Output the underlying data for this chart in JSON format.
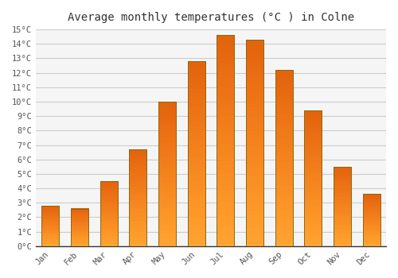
{
  "months": [
    "Jan",
    "Feb",
    "Mar",
    "Apr",
    "May",
    "Jun",
    "Jul",
    "Aug",
    "Sep",
    "Oct",
    "Nov",
    "Dec"
  ],
  "values": [
    2.8,
    2.6,
    4.5,
    6.7,
    10.0,
    12.8,
    14.6,
    14.3,
    12.2,
    9.4,
    5.5,
    3.6
  ],
  "bar_color": "#FFA500",
  "bar_edge_color": "#8B6914",
  "title": "Average monthly temperatures (°C ) in Colne",
  "ylim": [
    0,
    15
  ],
  "ytick_step": 1,
  "background_color": "#FFFFFF",
  "plot_bg_color": "#F5F5F5",
  "grid_color": "#CCCCCC",
  "title_fontsize": 10,
  "tick_fontsize": 7.5,
  "bar_width": 0.6
}
